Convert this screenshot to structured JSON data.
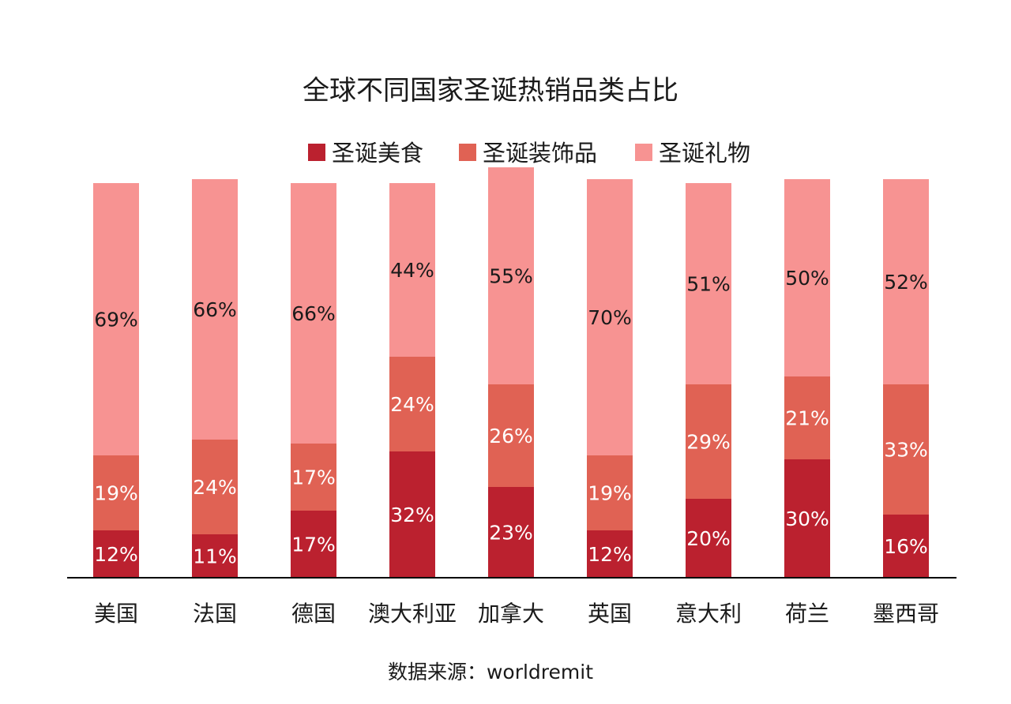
{
  "chart_data": {
    "type": "bar",
    "stacked": true,
    "title": "全球不同国家圣诞热销品类占比",
    "source": "数据来源：worldremit",
    "categories": [
      "美国",
      "法国",
      "德国",
      "澳大利亚",
      "加拿大",
      "英国",
      "意大利",
      "荷兰",
      "墨西哥"
    ],
    "series": [
      {
        "name": "圣诞美食",
        "color": "#bb212f",
        "values": [
          12,
          11,
          17,
          32,
          23,
          12,
          20,
          30,
          16
        ]
      },
      {
        "name": "圣诞装饰品",
        "color": "#e06254",
        "values": [
          19,
          24,
          17,
          24,
          26,
          19,
          29,
          21,
          33
        ]
      },
      {
        "name": "圣诞礼物",
        "color": "#f79392",
        "values": [
          69,
          66,
          66,
          44,
          55,
          70,
          51,
          50,
          52
        ]
      }
    ],
    "value_suffix": "%",
    "ylim": [
      0,
      100
    ],
    "grid": false,
    "legend_position": "top-center"
  }
}
